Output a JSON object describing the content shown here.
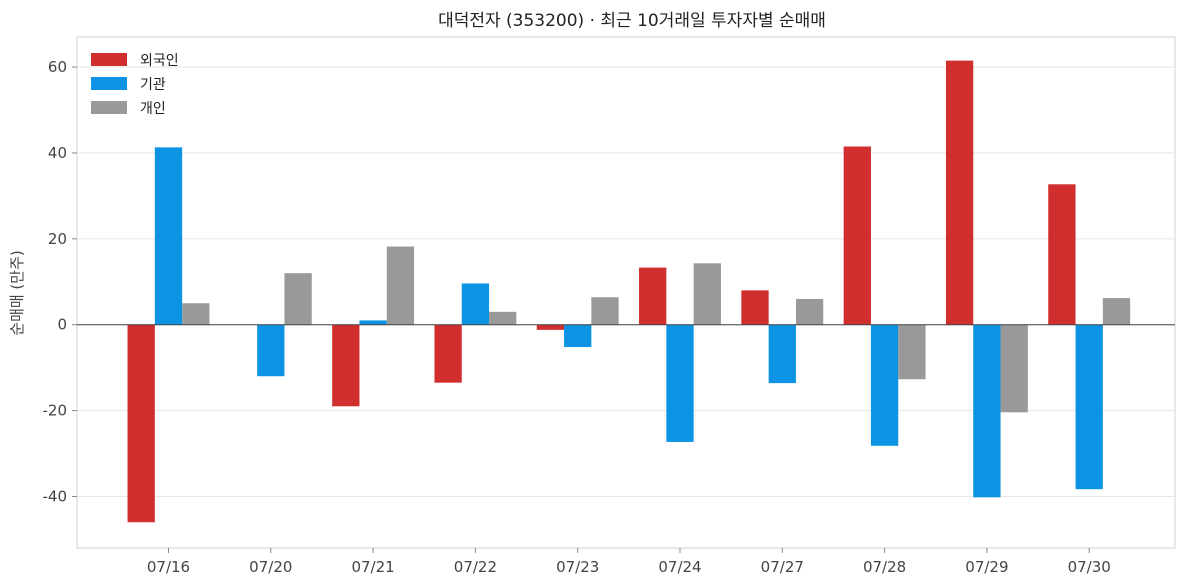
{
  "chart_data": {
    "type": "bar",
    "title": "대덕전자 (353200) · 최근 10거래일 투자자별 순매매",
    "xlabel": "",
    "ylabel": "순매매 (만주)",
    "categories": [
      "07/16",
      "07/20",
      "07/21",
      "07/22",
      "07/23",
      "07/24",
      "07/27",
      "07/28",
      "07/29",
      "07/30"
    ],
    "series": [
      {
        "name": "외국인",
        "color": "#d12e2e",
        "values": [
          -46.0,
          0,
          -19.0,
          -13.5,
          -1.2,
          13.3,
          8.0,
          41.5,
          61.5,
          32.7
        ]
      },
      {
        "name": "기관",
        "color": "#0c93e4",
        "values": [
          41.3,
          -12.0,
          1.0,
          9.6,
          -5.2,
          -27.3,
          -13.6,
          -28.2,
          -40.2,
          -38.3
        ]
      },
      {
        "name": "개인",
        "color": "#999999",
        "values": [
          5.0,
          12.0,
          18.2,
          3.0,
          6.4,
          14.3,
          6.0,
          -12.7,
          -20.4,
          6.2
        ]
      }
    ],
    "ylim": [
      -52,
      67
    ],
    "yticks": [
      -40,
      -20,
      0,
      20,
      40,
      60
    ],
    "grid": true,
    "legend_position": "top-left"
  }
}
